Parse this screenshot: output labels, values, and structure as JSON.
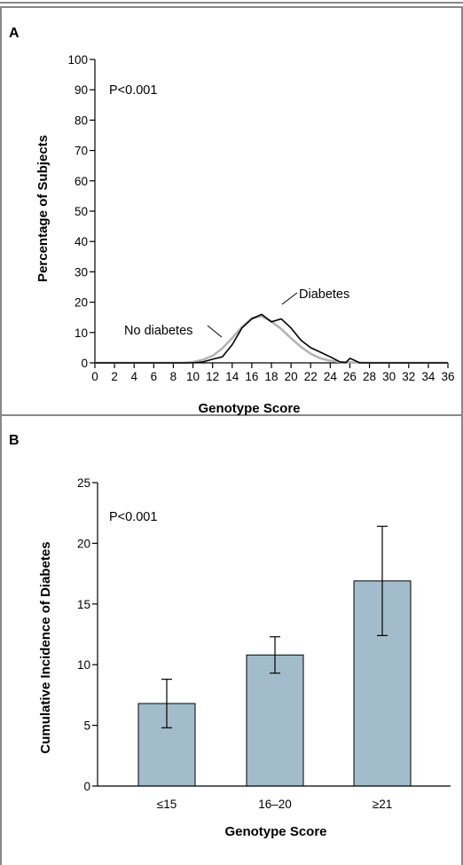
{
  "panel_a": {
    "letter": "A",
    "pvalue": "P<0.001",
    "label_no_diabetes": "No diabetes",
    "label_diabetes": "Diabetes"
  },
  "panel_b": {
    "letter": "B",
    "pvalue": "P<0.001"
  },
  "colors": {
    "no_diabetes_line": "#b3b3b3",
    "diabetes_line": "#000000",
    "bar_fill": "#a3bccb",
    "frame": "#808080"
  },
  "chart_data": [
    {
      "type": "line",
      "xlabel": "Genotype Score",
      "ylabel": "Percentage of Subjects",
      "xlim": [
        0,
        36
      ],
      "ylim": [
        0,
        100
      ],
      "xticks": [
        0,
        2,
        4,
        6,
        8,
        10,
        12,
        14,
        16,
        18,
        20,
        22,
        24,
        26,
        28,
        30,
        32,
        34,
        36
      ],
      "yticks": [
        0,
        10,
        20,
        30,
        40,
        50,
        60,
        70,
        80,
        90,
        100
      ],
      "grid": false,
      "annotation": "P<0.001",
      "series": [
        {
          "name": "No diabetes",
          "color": "#b3b3b3",
          "x": [
            0,
            9,
            10,
            11,
            12,
            13,
            14,
            15,
            16,
            17,
            18,
            19,
            20,
            21,
            22,
            23,
            24,
            25,
            26,
            27,
            28,
            36
          ],
          "y": [
            0,
            0,
            0.3,
            1.0,
            2.3,
            4.8,
            8.2,
            11.8,
            14.7,
            15.4,
            13.6,
            11.2,
            8.1,
            5.3,
            3.0,
            1.5,
            0.7,
            0.3,
            0.2,
            0.1,
            0,
            0
          ]
        },
        {
          "name": "Diabetes",
          "color": "#000000",
          "x": [
            0,
            10,
            11,
            12,
            13,
            14,
            15,
            16,
            17,
            18,
            19,
            20,
            21,
            22,
            23,
            24,
            25,
            25.6,
            26,
            26.5,
            27,
            36
          ],
          "y": [
            0,
            0,
            0.3,
            1.2,
            2.0,
            6.0,
            11.5,
            14.5,
            16.0,
            13.5,
            14.5,
            11.5,
            7.5,
            5.0,
            3.5,
            2.0,
            0.3,
            0.1,
            1.5,
            0.8,
            0,
            0
          ]
        }
      ]
    },
    {
      "type": "bar",
      "xlabel": "Genotype Score",
      "ylabel": "Cumulative Incidence of Diabetes",
      "categories": [
        "≤15",
        "16–20",
        "≥21"
      ],
      "values": [
        6.8,
        10.8,
        16.9
      ],
      "error_low": [
        4.8,
        9.3,
        12.4
      ],
      "error_high": [
        8.8,
        12.3,
        21.4
      ],
      "ylim": [
        0,
        25
      ],
      "yticks": [
        0,
        5,
        10,
        15,
        20,
        25
      ],
      "grid": false,
      "annotation": "P<0.001"
    }
  ]
}
